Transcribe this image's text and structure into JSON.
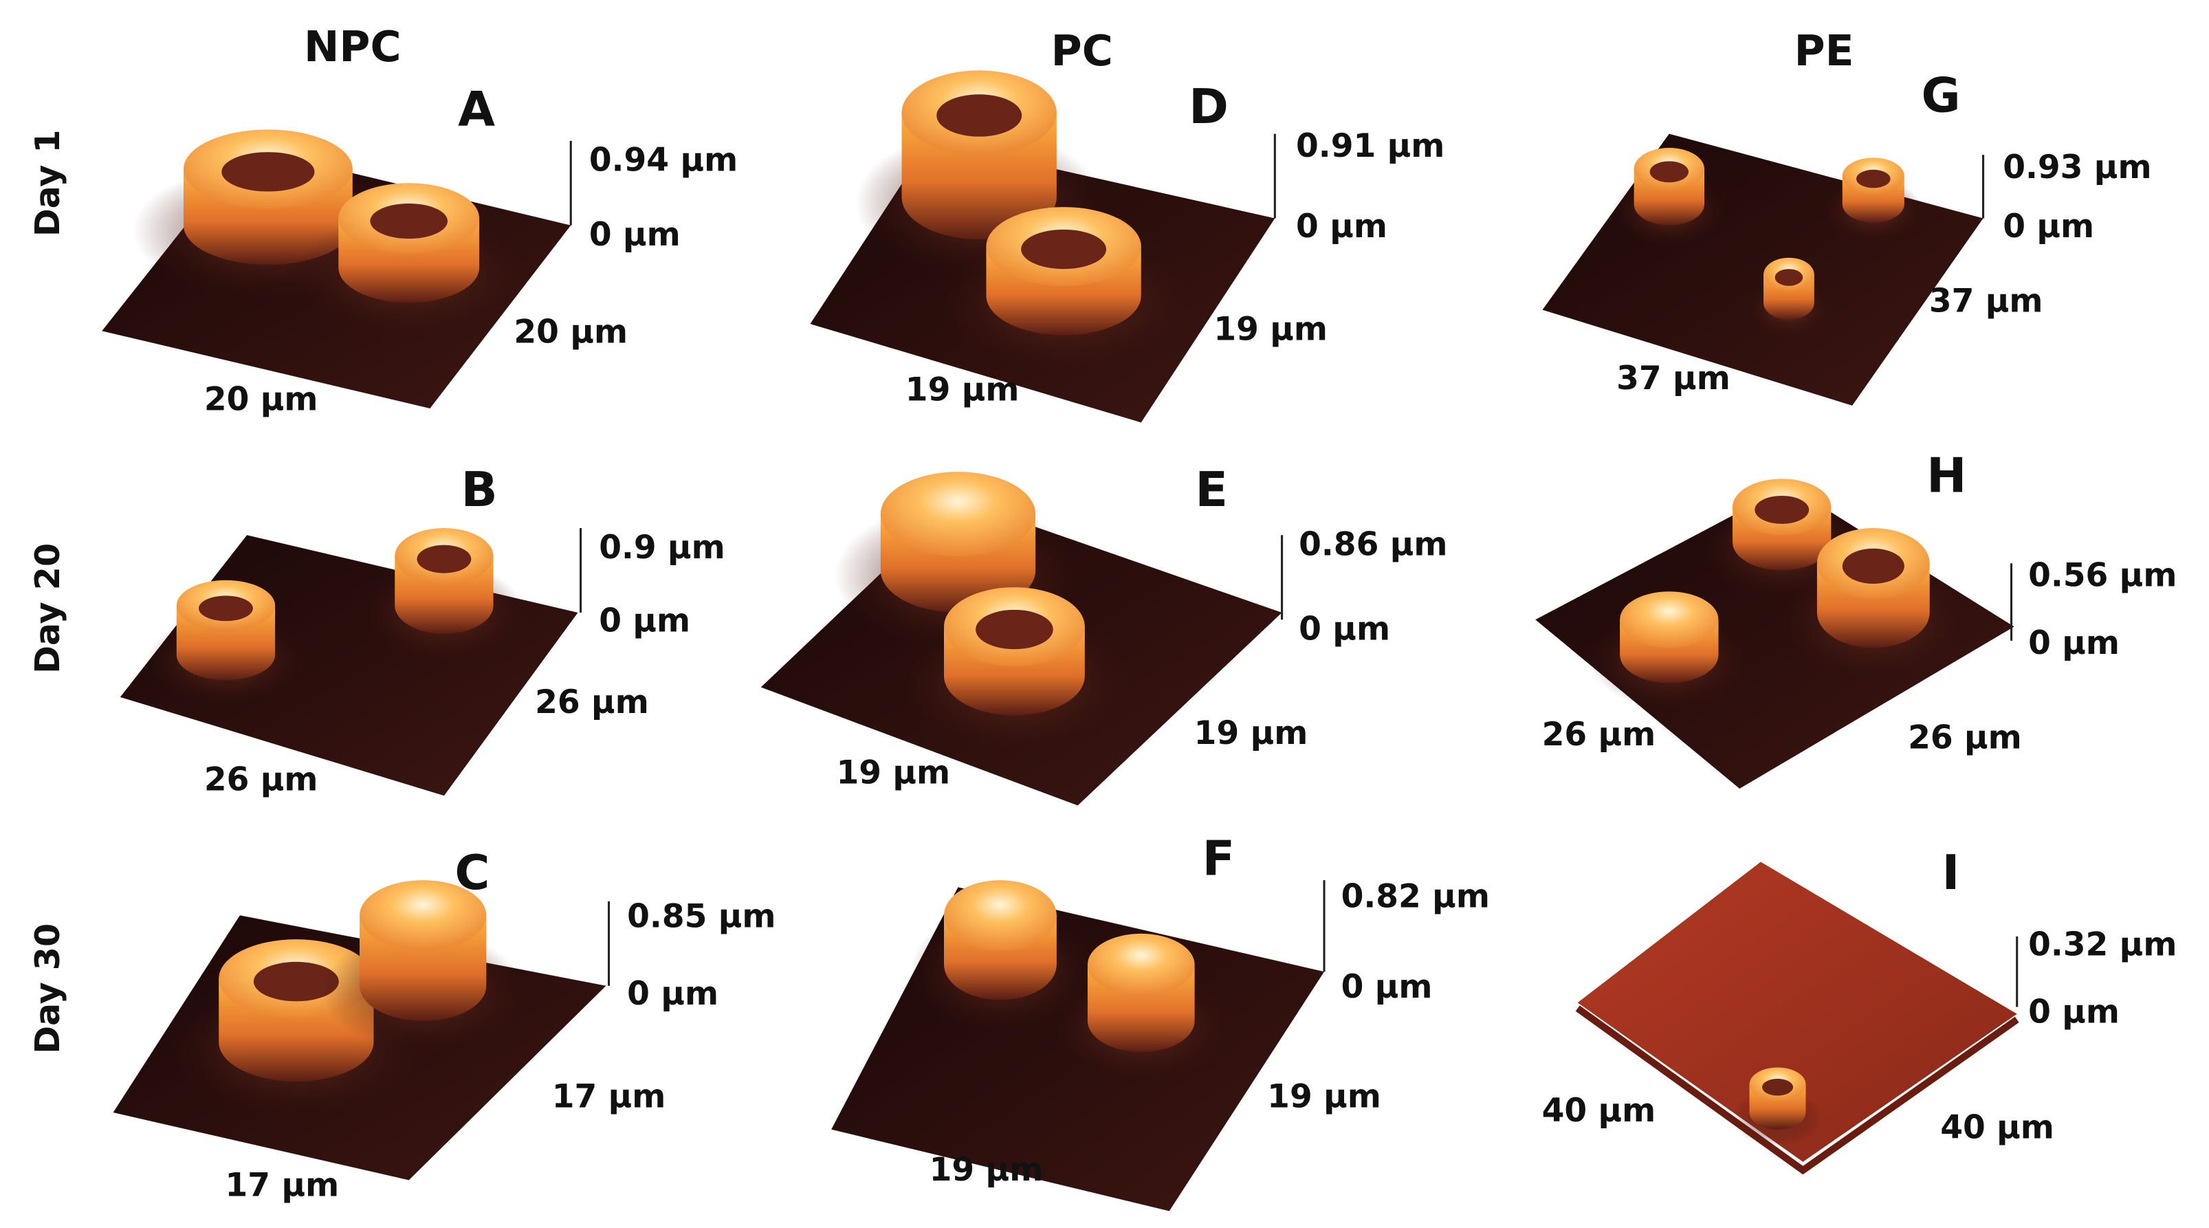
{
  "column_headers": [
    "NPC",
    "PC",
    "PE"
  ],
  "row_labels": [
    "Day 1",
    "Day 20",
    "Day 30"
  ],
  "panels": [
    {
      "letter": "A",
      "z_max": "0.94 μm",
      "z_min": "0 μm",
      "x_size": "20 μm",
      "y_size": "20 μm"
    },
    {
      "letter": "B",
      "z_max": "0.9 μm",
      "z_min": "0 μm",
      "x_size": "26 μm",
      "y_size": "26 μm"
    },
    {
      "letter": "C",
      "z_max": "0.85 μm",
      "z_min": "0 μm",
      "x_size": "17 μm",
      "y_size": "17 μm"
    },
    {
      "letter": "D",
      "z_max": "0.91 μm",
      "z_min": "0 μm",
      "x_size": "19 μm",
      "y_size": "19 μm"
    },
    {
      "letter": "E",
      "z_max": "0.86 μm",
      "z_min": "0 μm",
      "x_size": "19 μm",
      "y_size": "19 μm"
    },
    {
      "letter": "F",
      "z_max": "0.82 μm",
      "z_min": "0 μm",
      "x_size": "19 μm",
      "y_size": "19 μm"
    },
    {
      "letter": "G",
      "z_max": "0.93 μm",
      "z_min": "0 μm",
      "x_size": "37 μm",
      "y_size": "37 μm"
    },
    {
      "letter": "H",
      "z_max": "0.56 μm",
      "z_min": "0 μm",
      "x_size": "26 μm",
      "y_size": "26 μm"
    },
    {
      "letter": "I",
      "z_max": "0.32 μm",
      "z_min": "0 μm",
      "x_size": "40 μm",
      "y_size": "40 μm"
    }
  ]
}
